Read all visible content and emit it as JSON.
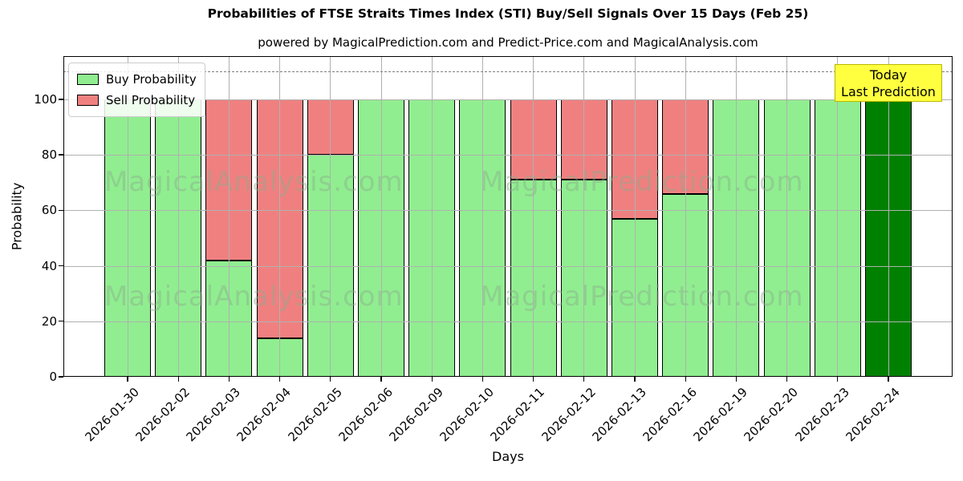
{
  "title": "Probabilities of FTSE Straits Times Index (STI) Buy/Sell Signals Over 15 Days (Feb 25)",
  "subtitle": "powered by MagicalPrediction.com and Predict-Price.com and MagicalAnalysis.com",
  "legend": {
    "items": [
      {
        "label": "Buy Probability",
        "color": "#90ee90"
      },
      {
        "label": "Sell Probability",
        "color": "#f08080"
      }
    ]
  },
  "annotation_box": {
    "line1": "Today",
    "line2": "Last Prediction",
    "bg_color": "#ffff40",
    "border_color": "#b8b800"
  },
  "watermarks": {
    "left_text": "MagicalAnalysis.com",
    "right_text": "MagicalPrediction.com"
  },
  "colors": {
    "buy": "#90ee90",
    "sell": "#f08080",
    "today_bar": "#008000",
    "grid": "#b0b0b0",
    "dashed_line": "#7f7f7f"
  },
  "chart_data": {
    "type": "bar",
    "stacked": true,
    "title": "Probabilities of FTSE Straits Times Index (STI) Buy/Sell Signals Over 15 Days (Feb 25)",
    "xlabel": "Days",
    "ylabel": "Probability",
    "categories": [
      "2026-01-30",
      "2026-02-02",
      "2026-02-03",
      "2026-02-04",
      "2026-02-05",
      "2026-02-06",
      "2026-02-09",
      "2026-02-10",
      "2026-02-11",
      "2026-02-12",
      "2026-02-13",
      "2026-02-16",
      "2026-02-19",
      "2026-02-20",
      "2026-02-23",
      "2026-02-24"
    ],
    "series": [
      {
        "name": "Buy Probability",
        "color": "#90ee90",
        "values": [
          100,
          100,
          42,
          14,
          80,
          100,
          100,
          100,
          71,
          71,
          57,
          66,
          100,
          100,
          100,
          100
        ]
      },
      {
        "name": "Sell Probability",
        "color": "#f08080",
        "values": [
          0,
          0,
          58,
          86,
          20,
          0,
          0,
          0,
          29,
          29,
          43,
          34,
          0,
          0,
          0,
          0
        ]
      }
    ],
    "today_index": 15,
    "yticks": [
      0,
      20,
      40,
      60,
      80,
      100
    ],
    "ylim": [
      0,
      115.6
    ],
    "dashed_line_y": 110,
    "grid": true,
    "legend_position": "upper left"
  }
}
